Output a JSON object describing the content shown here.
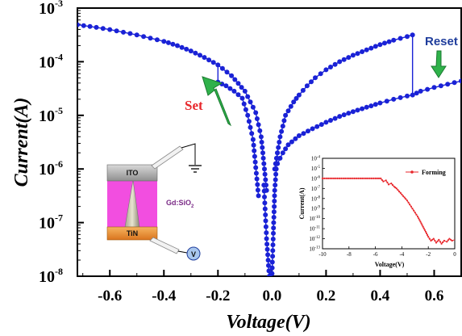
{
  "chart_data": {
    "type": "line",
    "xlabel": "Voltage(V)",
    "ylabel": "Current(A)",
    "xlim": [
      -0.72,
      0.7
    ],
    "ylim_exp": [
      -8,
      -3
    ],
    "yscale": "log",
    "x_ticks": [
      "-0.6",
      "-0.4",
      "-0.2",
      "0.0",
      "0.2",
      "0.4",
      "0.6"
    ],
    "x_tick_values": [
      -0.6,
      -0.4,
      -0.2,
      0.0,
      0.2,
      0.4,
      0.6
    ],
    "y_ticks": [
      {
        "base": "10",
        "exp": "-3",
        "value": -3
      },
      {
        "base": "10",
        "exp": "-4",
        "value": -4
      },
      {
        "base": "10",
        "exp": "-5",
        "value": -5
      },
      {
        "base": "10",
        "exp": "-6",
        "value": -6
      },
      {
        "base": "10",
        "exp": "-7",
        "value": -7
      },
      {
        "base": "10",
        "exp": "-8",
        "value": -8
      }
    ],
    "series_color": "#1a22d6",
    "annotations": {
      "set": "Set",
      "reset": "Reset",
      "set_color": "#e8262b",
      "reset_color": "#1f3d9c",
      "arrow_color": "#2fb24a"
    },
    "series": [
      {
        "segment": "negative-high-branch",
        "x": [
          -0.72,
          -0.65,
          -0.6,
          -0.55,
          -0.5,
          -0.45,
          -0.4,
          -0.35,
          -0.3,
          -0.25,
          -0.2,
          -0.15,
          -0.1,
          -0.06,
          -0.04,
          -0.02
        ],
        "log_y": [
          -3.31,
          -3.36,
          -3.4,
          -3.45,
          -3.5,
          -3.56,
          -3.62,
          -3.7,
          -3.8,
          -3.92,
          -4.06,
          -4.26,
          -4.55,
          -4.95,
          -5.4,
          -6.4
        ]
      },
      {
        "segment": "negative-low-branch",
        "x": [
          -0.2,
          -0.17,
          -0.14,
          -0.11,
          -0.09,
          -0.07,
          -0.05
        ],
        "log_y": [
          -4.38,
          -4.45,
          -4.55,
          -4.68,
          -5.0,
          -5.45,
          -6.5
        ]
      },
      {
        "segment": "center-dip",
        "x": [
          -0.03,
          -0.02,
          -0.01,
          0.0,
          0.005,
          0.01,
          0.02
        ],
        "log_y": [
          -6.3,
          -7.3,
          -8.0,
          -7.95,
          -7.2,
          -6.4,
          -5.7
        ]
      },
      {
        "segment": "positive-low-branch",
        "x": [
          0.02,
          0.04,
          0.06,
          0.1,
          0.15,
          0.2,
          0.25,
          0.3,
          0.35,
          0.4,
          0.45,
          0.5,
          0.52,
          0.55,
          0.6,
          0.65,
          0.7
        ],
        "log_y": [
          -5.9,
          -5.7,
          -5.55,
          -5.38,
          -5.25,
          -5.13,
          -5.02,
          -4.93,
          -4.85,
          -4.77,
          -4.7,
          -4.64,
          -4.62,
          -4.55,
          -4.48,
          -4.42,
          -4.36
        ]
      },
      {
        "segment": "positive-high-branch",
        "x": [
          0.01,
          0.03,
          0.05,
          0.08,
          0.1,
          0.13,
          0.16,
          0.2,
          0.25,
          0.3,
          0.35,
          0.4,
          0.45,
          0.5,
          0.52
        ],
        "log_y": [
          -6.0,
          -5.4,
          -5.0,
          -4.75,
          -4.62,
          -4.45,
          -4.3,
          -4.15,
          -4.0,
          -3.88,
          -3.78,
          -3.68,
          -3.6,
          -3.53,
          -3.5
        ]
      }
    ],
    "inset": {
      "type": "line",
      "xlabel": "Voltage(V)",
      "ylabel": "Current(A)",
      "xlim": [
        -10,
        0
      ],
      "ylim_exp": [
        -13,
        -4
      ],
      "x_ticks": [
        "-10",
        "-8",
        "-6",
        "-4",
        "-2",
        "0"
      ],
      "x_tick_values": [
        -10,
        -8,
        -6,
        -4,
        -2,
        0
      ],
      "y_ticks": [
        {
          "base": "10",
          "exp": "-4",
          "value": -4
        },
        {
          "base": "10",
          "exp": "-5",
          "value": -5
        },
        {
          "base": "10",
          "exp": "-6",
          "value": -6
        },
        {
          "base": "10",
          "exp": "-7",
          "value": -7
        },
        {
          "base": "10",
          "exp": "-8",
          "value": -8
        },
        {
          "base": "10",
          "exp": "-9",
          "value": -9
        },
        {
          "base": "10",
          "exp": "-10",
          "value": -10
        },
        {
          "base": "10",
          "exp": "-11",
          "value": -11
        },
        {
          "base": "10",
          "exp": "-12",
          "value": -12
        },
        {
          "base": "10",
          "exp": "-13",
          "value": -13
        }
      ],
      "legend": "Forming",
      "series_color": "#e8262b",
      "x": [
        -10,
        -9,
        -8,
        -7,
        -6,
        -5.6,
        -5.4,
        -5.2,
        -5.0,
        -4.8,
        -4.6,
        -4.4,
        -4.2,
        -4.0,
        -3.8,
        -3.6,
        -3.4,
        -3.2,
        -3.0,
        -2.8,
        -2.6,
        -2.4,
        -2.2,
        -2.0,
        -1.8,
        -1.6,
        -1.4,
        -1.2,
        -1.0,
        -0.8,
        -0.6,
        -0.4,
        -0.2,
        0
      ],
      "log_y": [
        -6.0,
        -6.0,
        -6.0,
        -6.0,
        -6.0,
        -6.0,
        -6.3,
        -6.2,
        -6.6,
        -6.5,
        -6.8,
        -7.0,
        -7.3,
        -7.6,
        -7.9,
        -8.2,
        -8.6,
        -9.0,
        -9.4,
        -9.8,
        -10.3,
        -10.8,
        -11.3,
        -11.8,
        -12.2,
        -12.0,
        -12.4,
        -12.1,
        -12.5,
        -12.2,
        -12.3,
        -12.0,
        -12.2,
        -12.1
      ]
    },
    "device": {
      "top_electrode": "ITO",
      "bottom_electrode": "TiN",
      "layer": "Gd:SiO",
      "layer_sub": "2",
      "source": "V",
      "layer_color": "#f24ee0",
      "electrode_top_color": "#b8b8b8",
      "electrode_bottom_color": "#f29a3c"
    }
  }
}
